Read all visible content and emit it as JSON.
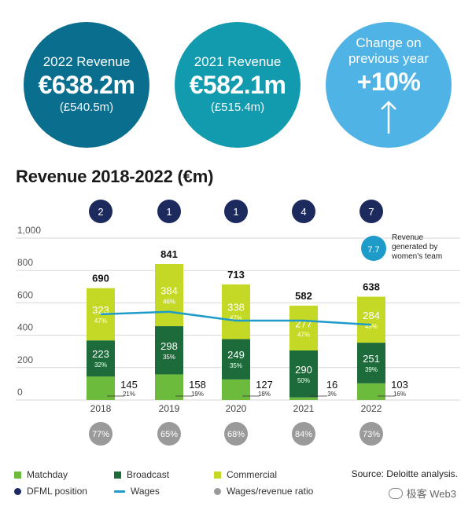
{
  "kpis": [
    {
      "label": "2022 Revenue",
      "value": "€638.2m",
      "sub": "(£540.5m)",
      "color": "#0a6e8f"
    },
    {
      "label": "2021 Revenue",
      "value": "€582.1m",
      "sub": "(£515.4m)",
      "color": "#129aae"
    },
    {
      "label": "Change on previous year",
      "value": "+10%",
      "icon": "arrow-up-icon",
      "color": "#4fb3e6"
    }
  ],
  "chart_data": {
    "type": "bar",
    "title": "Revenue 2018-2022 (€m)",
    "categories": [
      "2018",
      "2019",
      "2020",
      "2021",
      "2022"
    ],
    "ylim": [
      0,
      1000
    ],
    "yticks": [
      "0",
      "200",
      "400",
      "600",
      "800",
      "1,000"
    ],
    "grid": true,
    "series": [
      {
        "name": "Matchday",
        "color": "#6dbb3c",
        "values": [
          145,
          158,
          127,
          16,
          103
        ],
        "labels": [
          "145",
          "158",
          "127",
          "16",
          "103"
        ],
        "pct": [
          "21%",
          "19%",
          "18%",
          "3%",
          "16%"
        ]
      },
      {
        "name": "Broadcast",
        "color": "#1d6b3a",
        "values": [
          223,
          298,
          249,
          290,
          251
        ],
        "labels": [
          "223",
          "298",
          "249",
          "290",
          "251"
        ],
        "pct": [
          "32%",
          "35%",
          "35%",
          "50%",
          "39%"
        ]
      },
      {
        "name": "Commercial",
        "color": "#c4d925",
        "values": [
          323,
          384,
          338,
          277,
          284
        ],
        "labels": [
          "323",
          "384",
          "338",
          "277",
          "284"
        ],
        "pct": [
          "47%",
          "46%",
          "47%",
          "47%",
          "45%"
        ]
      }
    ],
    "totals": [
      "690",
      "841",
      "713",
      "582",
      "638"
    ],
    "wages": {
      "name": "Wages",
      "color": "#1e9bc9",
      "values": [
        530,
        545,
        490,
        490,
        465
      ]
    },
    "dfml_positions": [
      "2",
      "1",
      "1",
      "4",
      "7"
    ],
    "wages_revenue_ratio": [
      "77%",
      "65%",
      "68%",
      "84%",
      "73%"
    ],
    "womens_team": {
      "value": "7.7",
      "label": "Revenue generated by women's team",
      "color": "#1e9bc9"
    }
  },
  "legend": [
    {
      "label": "Matchday",
      "kind": "swatch",
      "color": "#6dbb3c"
    },
    {
      "label": "Broadcast",
      "kind": "swatch",
      "color": "#1d6b3a"
    },
    {
      "label": "Commercial",
      "kind": "swatch",
      "color": "#c4d925"
    },
    {
      "label": "DFML position",
      "kind": "dot",
      "color": "#1c2a5e"
    },
    {
      "label": "Wages",
      "kind": "line",
      "color": "#1e9bc9"
    },
    {
      "label": "Wages/revenue ratio",
      "kind": "dot",
      "color": "#9a9a9a"
    }
  ],
  "source": "Source: Deloitte analysis.",
  "watermark": "极客 Web3"
}
